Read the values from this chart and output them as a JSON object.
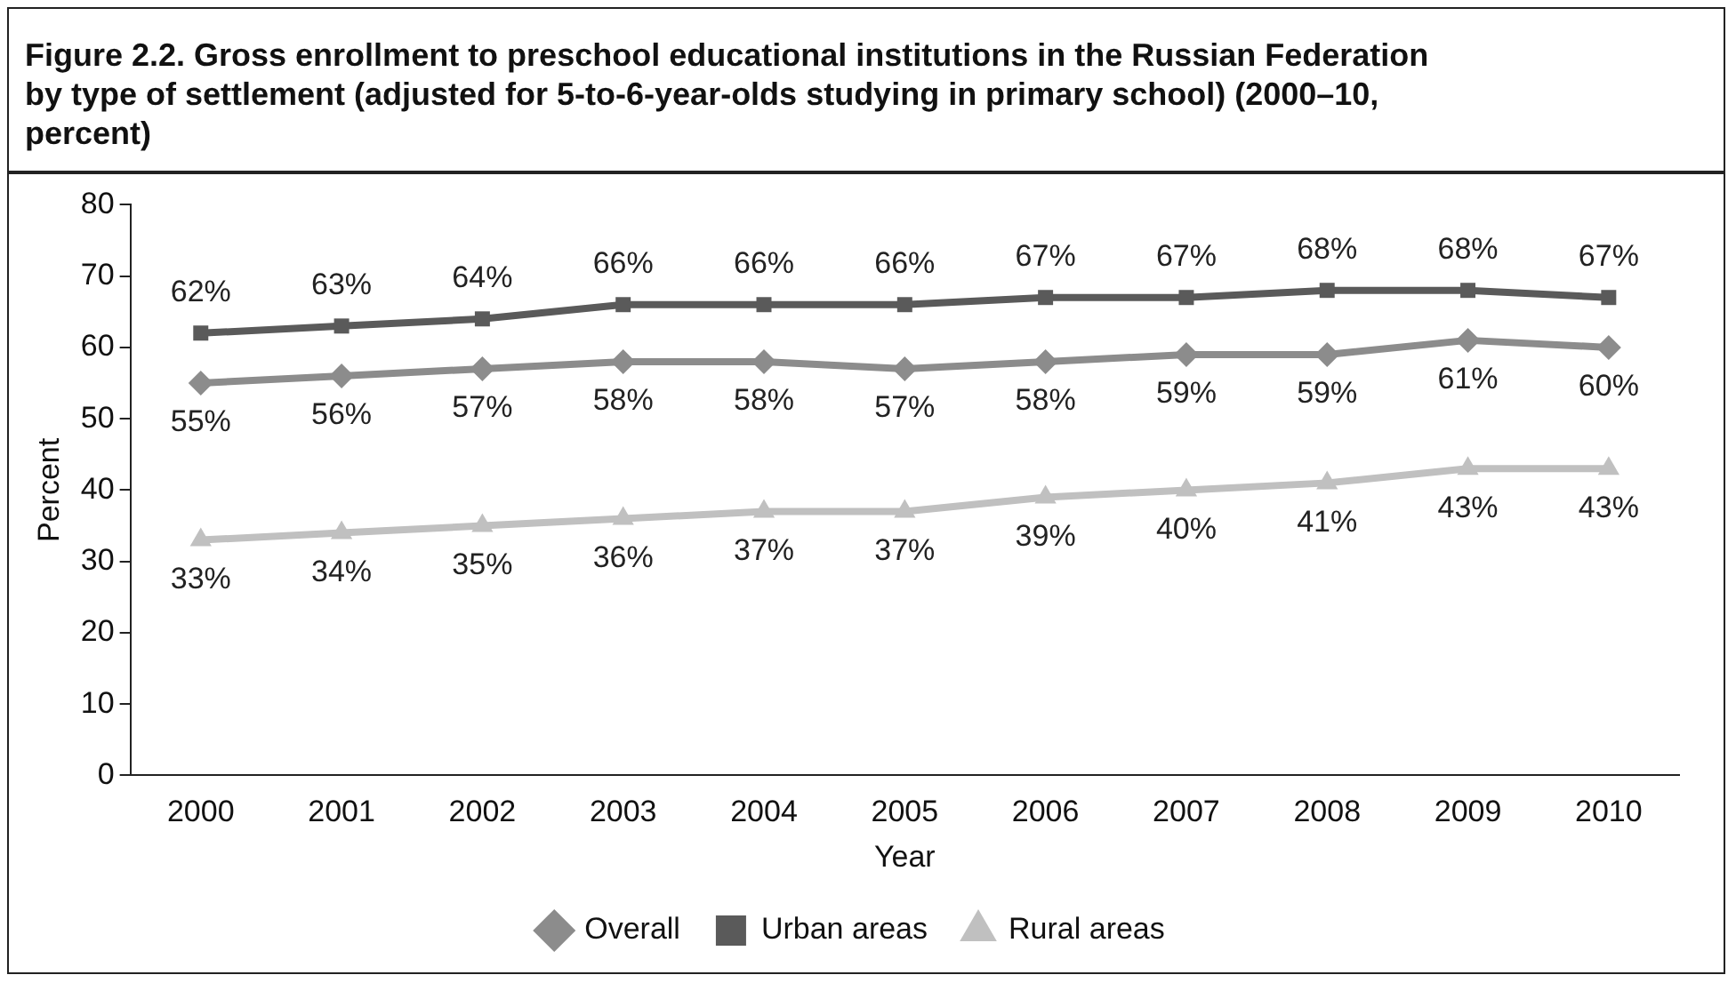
{
  "chart_data": {
    "type": "line",
    "title": "Figure 2.2. Gross enrollment to preschool educational institutions in the Russian Federation by type of settlement (adjusted for 5-to-6-year-olds studying in primary school) (2000–10, percent)",
    "xlabel": "Year",
    "ylabel": "Percent",
    "categories": [
      "2000",
      "2001",
      "2002",
      "2003",
      "2004",
      "2005",
      "2006",
      "2007",
      "2008",
      "2009",
      "2010"
    ],
    "ylim": [
      0,
      80
    ],
    "yticks": [
      0,
      10,
      20,
      30,
      40,
      50,
      60,
      70,
      80
    ],
    "grid": false,
    "legend": "bottom",
    "data_labels": true,
    "series": [
      {
        "name": "Overall",
        "color": "#8c8c8c",
        "marker": "diamond",
        "values": [
          55,
          56,
          57,
          58,
          58,
          57,
          58,
          59,
          59,
          61,
          60
        ],
        "value_labels": [
          "55%",
          "56%",
          "57%",
          "58%",
          "58%",
          "57%",
          "58%",
          "59%",
          "59%",
          "61%",
          "60%"
        ]
      },
      {
        "name": "Urban areas",
        "color": "#5a5a5a",
        "marker": "square",
        "values": [
          62,
          63,
          64,
          66,
          66,
          66,
          67,
          67,
          68,
          68,
          67
        ],
        "value_labels": [
          "62%",
          "63%",
          "64%",
          "66%",
          "66%",
          "66%",
          "67%",
          "67%",
          "68%",
          "68%",
          "67%"
        ]
      },
      {
        "name": "Rural areas",
        "color": "#c0c0c0",
        "marker": "triangle",
        "values": [
          33,
          34,
          35,
          36,
          37,
          37,
          39,
          40,
          41,
          43,
          43
        ],
        "value_labels": [
          "33%",
          "34%",
          "35%",
          "36%",
          "37%",
          "37%",
          "39%",
          "40%",
          "41%",
          "43%",
          "43%"
        ]
      }
    ]
  }
}
